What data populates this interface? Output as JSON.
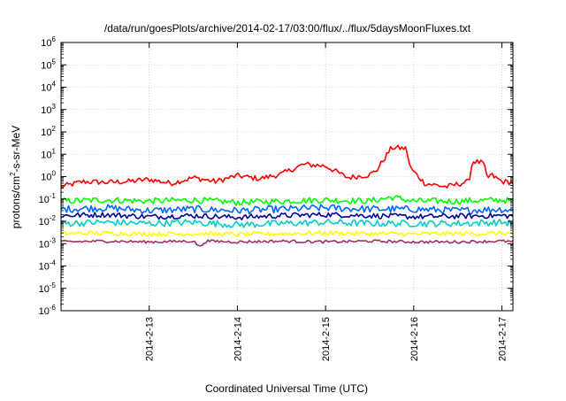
{
  "chart_data": {
    "type": "line",
    "title": "/data/run/goesPlots/archive/2014-02-17/03:00/flux/../flux/5daysMoonFluxes.txt",
    "xlabel": "Coordinated Universal Time (UTC)",
    "ylabel": {
      "base": "protons/cm",
      "sup": "2",
      "rest": "-s-sr-MeV"
    },
    "yscale": "log",
    "ylim": [
      -6,
      6
    ],
    "xlim": [
      "2014-02-12T00:00",
      "2014-02-17T03:00"
    ],
    "x_ticks": [
      "2014-2-13",
      "2014-2-14",
      "2014-2-15",
      "2014-2-16",
      "2014-2-17"
    ],
    "x_tick_times": [
      "2014-02-13T00:00",
      "2014-02-14T00:00",
      "2014-02-15T00:00",
      "2014-02-16T00:00",
      "2014-02-17T00:00"
    ],
    "y_ticks": [
      {
        "base": "10",
        "exp": "-6"
      },
      {
        "base": "10",
        "exp": "-5"
      },
      {
        "base": "10",
        "exp": "-4"
      },
      {
        "base": "10",
        "exp": "-3"
      },
      {
        "base": "10",
        "exp": "-2"
      },
      {
        "base": "10",
        "exp": "-1"
      },
      {
        "base": "10",
        "exp": "0"
      },
      {
        "base": "10",
        "exp": "1"
      },
      {
        "base": "10",
        "exp": "2"
      },
      {
        "base": "10",
        "exp": "3"
      },
      {
        "base": "10",
        "exp": "4"
      },
      {
        "base": "10",
        "exp": "5"
      },
      {
        "base": "10",
        "exp": "6"
      }
    ],
    "grid": true,
    "series": [
      {
        "color": "#ff0000",
        "jitter": 0.12,
        "x": [
          "2014-02-12T00:00",
          "2014-02-12T06:00",
          "2014-02-12T12:00",
          "2014-02-12T18:00",
          "2014-02-13T00:00",
          "2014-02-13T06:00",
          "2014-02-13T12:00",
          "2014-02-13T18:00",
          "2014-02-14T00:00",
          "2014-02-14T06:00",
          "2014-02-14T12:00",
          "2014-02-14T18:00",
          "2014-02-15T00:00",
          "2014-02-15T06:00",
          "2014-02-15T12:00",
          "2014-02-15T14:00",
          "2014-02-15T18:00",
          "2014-02-15T22:00",
          "2014-02-15T23:00",
          "2014-02-16T03:00",
          "2014-02-16T09:00",
          "2014-02-16T15:00",
          "2014-02-16T16:00",
          "2014-02-16T19:00",
          "2014-02-16T20:00",
          "2014-02-16T21:00",
          "2014-02-17T00:00",
          "2014-02-17T03:00"
        ],
        "y": [
          0.35,
          0.6,
          0.55,
          0.6,
          0.75,
          0.5,
          0.9,
          0.6,
          1.1,
          0.8,
          1.3,
          3.5,
          3.0,
          0.9,
          1.2,
          2.0,
          20,
          18,
          2.5,
          0.5,
          0.35,
          0.6,
          5.0,
          4.0,
          0.8,
          1.2,
          0.6,
          0.55
        ]
      },
      {
        "color": "#00ff00",
        "jitter": 0.14,
        "x": [
          "2014-02-12T00:00",
          "2014-02-12T12:00",
          "2014-02-13T00:00",
          "2014-02-13T12:00",
          "2014-02-14T00:00",
          "2014-02-14T12:00",
          "2014-02-15T00:00",
          "2014-02-15T12:00",
          "2014-02-15T18:00",
          "2014-02-16T00:00",
          "2014-02-16T12:00",
          "2014-02-17T00:00",
          "2014-02-17T03:00"
        ],
        "y": [
          0.08,
          0.09,
          0.08,
          0.09,
          0.07,
          0.08,
          0.09,
          0.08,
          0.12,
          0.08,
          0.08,
          0.09,
          0.08
        ]
      },
      {
        "color": "#0066ff",
        "jitter": 0.16,
        "x": [
          "2014-02-12T00:00",
          "2014-02-12T12:00",
          "2014-02-13T00:00",
          "2014-02-13T12:00",
          "2014-02-14T00:00",
          "2014-02-14T12:00",
          "2014-02-15T00:00",
          "2014-02-15T12:00",
          "2014-02-16T00:00",
          "2014-02-16T12:00",
          "2014-02-17T00:00",
          "2014-02-17T03:00"
        ],
        "y": [
          0.035,
          0.04,
          0.03,
          0.035,
          0.03,
          0.035,
          0.04,
          0.035,
          0.035,
          0.03,
          0.035,
          0.03
        ]
      },
      {
        "color": "#000099",
        "jitter": 0.12,
        "x": [
          "2014-02-12T00:00",
          "2014-02-12T12:00",
          "2014-02-13T00:00",
          "2014-02-13T12:00",
          "2014-02-14T00:00",
          "2014-02-14T12:00",
          "2014-02-15T00:00",
          "2014-02-15T12:00",
          "2014-02-16T00:00",
          "2014-02-16T12:00",
          "2014-02-17T00:00",
          "2014-02-17T03:00"
        ],
        "y": [
          0.018,
          0.02,
          0.016,
          0.018,
          0.015,
          0.018,
          0.02,
          0.018,
          0.016,
          0.017,
          0.018,
          0.017
        ]
      },
      {
        "color": "#00cccc",
        "jitter": 0.15,
        "x": [
          "2014-02-12T00:00",
          "2014-02-12T12:00",
          "2014-02-13T00:00",
          "2014-02-13T12:00",
          "2014-02-14T00:00",
          "2014-02-14T12:00",
          "2014-02-15T00:00",
          "2014-02-15T12:00",
          "2014-02-16T00:00",
          "2014-02-16T12:00",
          "2014-02-17T00:00",
          "2014-02-17T03:00"
        ],
        "y": [
          0.008,
          0.009,
          0.008,
          0.009,
          0.007,
          0.008,
          0.009,
          0.008,
          0.008,
          0.008,
          0.009,
          0.008
        ]
      },
      {
        "color": "#ffff00",
        "jitter": 0.1,
        "x": [
          "2014-02-12T00:00",
          "2014-02-12T12:00",
          "2014-02-13T00:00",
          "2014-02-13T12:00",
          "2014-02-14T00:00",
          "2014-02-14T12:00",
          "2014-02-15T00:00",
          "2014-02-15T12:00",
          "2014-02-16T00:00",
          "2014-02-16T12:00",
          "2014-02-17T00:00",
          "2014-02-17T03:00"
        ],
        "y": [
          0.0028,
          0.003,
          0.0027,
          0.0028,
          0.0026,
          0.0028,
          0.003,
          0.0028,
          0.0027,
          0.0028,
          0.0029,
          0.0028
        ]
      },
      {
        "color": "#993366",
        "jitter": 0.06,
        "x": [
          "2014-02-12T00:00",
          "2014-02-12T12:00",
          "2014-02-13T00:00",
          "2014-02-13T12:00",
          "2014-02-13T14:00",
          "2014-02-13T15:00",
          "2014-02-13T16:00",
          "2014-02-14T00:00",
          "2014-02-14T12:00",
          "2014-02-15T00:00",
          "2014-02-15T12:00",
          "2014-02-16T00:00",
          "2014-02-16T12:00",
          "2014-02-17T00:00",
          "2014-02-17T03:00"
        ],
        "y": [
          0.0012,
          0.0013,
          0.0012,
          0.0013,
          0.0007,
          0.0012,
          0.0013,
          0.0012,
          0.0013,
          0.0012,
          0.0013,
          0.0012,
          0.0012,
          0.0013,
          0.0012
        ]
      }
    ]
  }
}
